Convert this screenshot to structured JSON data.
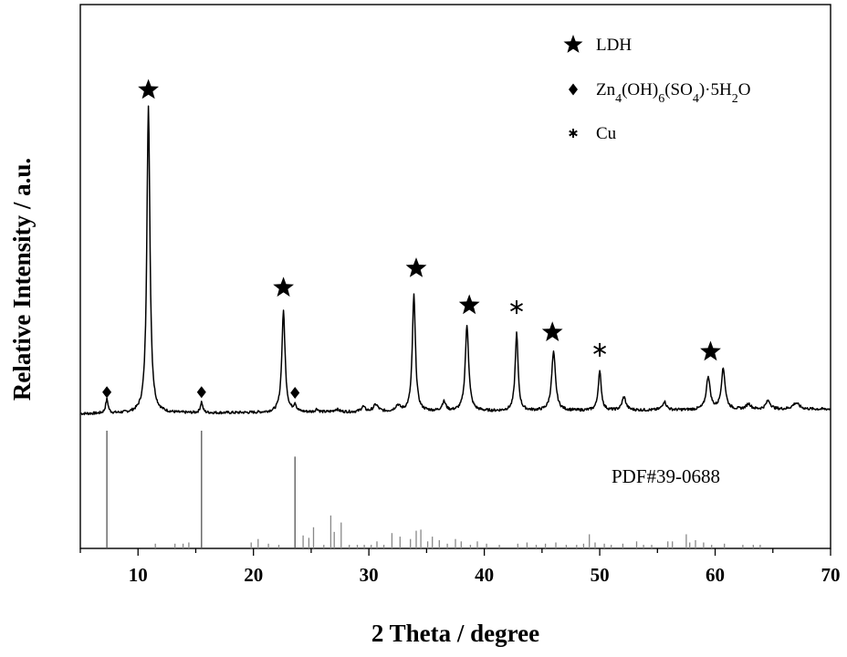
{
  "chart_data": {
    "type": "line",
    "xlabel": "2 Theta / degree",
    "ylabel": "Relative Intensity / a.u.",
    "xlim": [
      5,
      70
    ],
    "xticks": [
      10,
      20,
      30,
      40,
      50,
      60,
      70
    ],
    "ylim": [
      0,
      100
    ],
    "yticks_shown": false,
    "grid": false,
    "legend": {
      "placement": "top-right",
      "entries": [
        {
          "symbol": "star",
          "label": "LDH"
        },
        {
          "symbol": "diamond",
          "label_parts": [
            "Zn",
            "4",
            "(OH)",
            "6",
            "(SO",
            "4",
            ")·5H",
            "2",
            "O"
          ]
        },
        {
          "symbol": "asterisk",
          "label": "Cu"
        }
      ]
    },
    "reference_label": "PDF#39-0688",
    "series": [
      {
        "type": "xrd-pattern",
        "baseline": 2,
        "noise": 0.35,
        "peaks": [
          {
            "x": 7.3,
            "h": 3.6,
            "w": 0.13
          },
          {
            "x": 10.9,
            "h": 79,
            "w": 0.16
          },
          {
            "x": 15.5,
            "h": 2.8,
            "w": 0.12
          },
          {
            "x": 22.6,
            "h": 26,
            "w": 0.17
          },
          {
            "x": 23.6,
            "h": 1.9,
            "w": 0.13
          },
          {
            "x": 25.5,
            "h": 0.8,
            "w": 0.15
          },
          {
            "x": 27.2,
            "h": 0.7,
            "w": 0.25
          },
          {
            "x": 29.5,
            "h": 1.3,
            "w": 0.2
          },
          {
            "x": 30.6,
            "h": 1.8,
            "w": 0.25
          },
          {
            "x": 32.5,
            "h": 1.5,
            "w": 0.25
          },
          {
            "x": 33.9,
            "h": 30,
            "w": 0.16
          },
          {
            "x": 36.5,
            "h": 2.4,
            "w": 0.2
          },
          {
            "x": 38.5,
            "h": 22,
            "w": 0.18
          },
          {
            "x": 42.8,
            "h": 20,
            "w": 0.15
          },
          {
            "x": 46.0,
            "h": 15,
            "w": 0.2
          },
          {
            "x": 50.0,
            "h": 10,
            "w": 0.16
          },
          {
            "x": 52.1,
            "h": 3.4,
            "w": 0.2
          },
          {
            "x": 55.6,
            "h": 2.2,
            "w": 0.2
          },
          {
            "x": 59.4,
            "h": 8.5,
            "w": 0.2
          },
          {
            "x": 60.7,
            "h": 10.5,
            "w": 0.2
          },
          {
            "x": 62.9,
            "h": 1.4,
            "w": 0.25
          },
          {
            "x": 64.6,
            "h": 2.2,
            "w": 0.25
          },
          {
            "x": 67.0,
            "h": 1.6,
            "w": 0.35
          }
        ]
      }
    ],
    "markers": [
      {
        "symbol": "diamond",
        "x": 7.3,
        "y": 7.6
      },
      {
        "symbol": "star",
        "x": 10.9,
        "y": 85.5
      },
      {
        "symbol": "diamond",
        "x": 15.5,
        "y": 7.6
      },
      {
        "symbol": "star",
        "x": 22.6,
        "y": 34.5
      },
      {
        "symbol": "diamond",
        "x": 23.6,
        "y": 7.4
      },
      {
        "symbol": "star",
        "x": 34.1,
        "y": 39.5
      },
      {
        "symbol": "star",
        "x": 38.7,
        "y": 30
      },
      {
        "symbol": "asterisk",
        "x": 42.8,
        "y": 29.5
      },
      {
        "symbol": "star",
        "x": 45.9,
        "y": 23
      },
      {
        "symbol": "asterisk",
        "x": 50.0,
        "y": 18.5
      },
      {
        "symbol": "star",
        "x": 59.6,
        "y": 18
      }
    ],
    "reference_lines": [
      {
        "x": 7.3,
        "h": 100
      },
      {
        "x": 11.5,
        "h": 4
      },
      {
        "x": 13.2,
        "h": 4
      },
      {
        "x": 13.9,
        "h": 4
      },
      {
        "x": 14.4,
        "h": 5
      },
      {
        "x": 15.5,
        "h": 100
      },
      {
        "x": 19.8,
        "h": 5
      },
      {
        "x": 20.4,
        "h": 8
      },
      {
        "x": 21.3,
        "h": 4
      },
      {
        "x": 22.2,
        "h": 3
      },
      {
        "x": 23.6,
        "h": 78
      },
      {
        "x": 24.3,
        "h": 11
      },
      {
        "x": 24.8,
        "h": 9
      },
      {
        "x": 25.2,
        "h": 18
      },
      {
        "x": 26.1,
        "h": 3
      },
      {
        "x": 26.7,
        "h": 28
      },
      {
        "x": 27.0,
        "h": 14
      },
      {
        "x": 27.6,
        "h": 22
      },
      {
        "x": 28.3,
        "h": 3
      },
      {
        "x": 29.0,
        "h": 3
      },
      {
        "x": 29.6,
        "h": 3
      },
      {
        "x": 30.2,
        "h": 3
      },
      {
        "x": 30.7,
        "h": 6
      },
      {
        "x": 31.3,
        "h": 3
      },
      {
        "x": 32.0,
        "h": 13
      },
      {
        "x": 32.7,
        "h": 10
      },
      {
        "x": 33.6,
        "h": 8
      },
      {
        "x": 34.1,
        "h": 15
      },
      {
        "x": 34.5,
        "h": 16
      },
      {
        "x": 35.1,
        "h": 6
      },
      {
        "x": 35.5,
        "h": 10
      },
      {
        "x": 36.1,
        "h": 7
      },
      {
        "x": 36.8,
        "h": 4
      },
      {
        "x": 37.5,
        "h": 8
      },
      {
        "x": 38.0,
        "h": 6
      },
      {
        "x": 38.8,
        "h": 3
      },
      {
        "x": 39.4,
        "h": 6
      },
      {
        "x": 40.2,
        "h": 4
      },
      {
        "x": 41.3,
        "h": 3
      },
      {
        "x": 42.9,
        "h": 4
      },
      {
        "x": 43.7,
        "h": 5
      },
      {
        "x": 44.5,
        "h": 3
      },
      {
        "x": 45.3,
        "h": 4
      },
      {
        "x": 46.2,
        "h": 5
      },
      {
        "x": 47.1,
        "h": 3
      },
      {
        "x": 48.0,
        "h": 3
      },
      {
        "x": 48.6,
        "h": 4
      },
      {
        "x": 49.1,
        "h": 12
      },
      {
        "x": 49.6,
        "h": 5
      },
      {
        "x": 50.4,
        "h": 4
      },
      {
        "x": 51.0,
        "h": 3
      },
      {
        "x": 52.0,
        "h": 4
      },
      {
        "x": 53.2,
        "h": 6
      },
      {
        "x": 53.8,
        "h": 3
      },
      {
        "x": 54.5,
        "h": 3
      },
      {
        "x": 55.9,
        "h": 6
      },
      {
        "x": 56.3,
        "h": 6
      },
      {
        "x": 57.5,
        "h": 12
      },
      {
        "x": 57.8,
        "h": 5
      },
      {
        "x": 58.3,
        "h": 7
      },
      {
        "x": 59.0,
        "h": 5
      },
      {
        "x": 59.7,
        "h": 3
      },
      {
        "x": 60.8,
        "h": 4
      },
      {
        "x": 62.4,
        "h": 3
      },
      {
        "x": 63.3,
        "h": 3
      },
      {
        "x": 63.9,
        "h": 3
      }
    ]
  }
}
